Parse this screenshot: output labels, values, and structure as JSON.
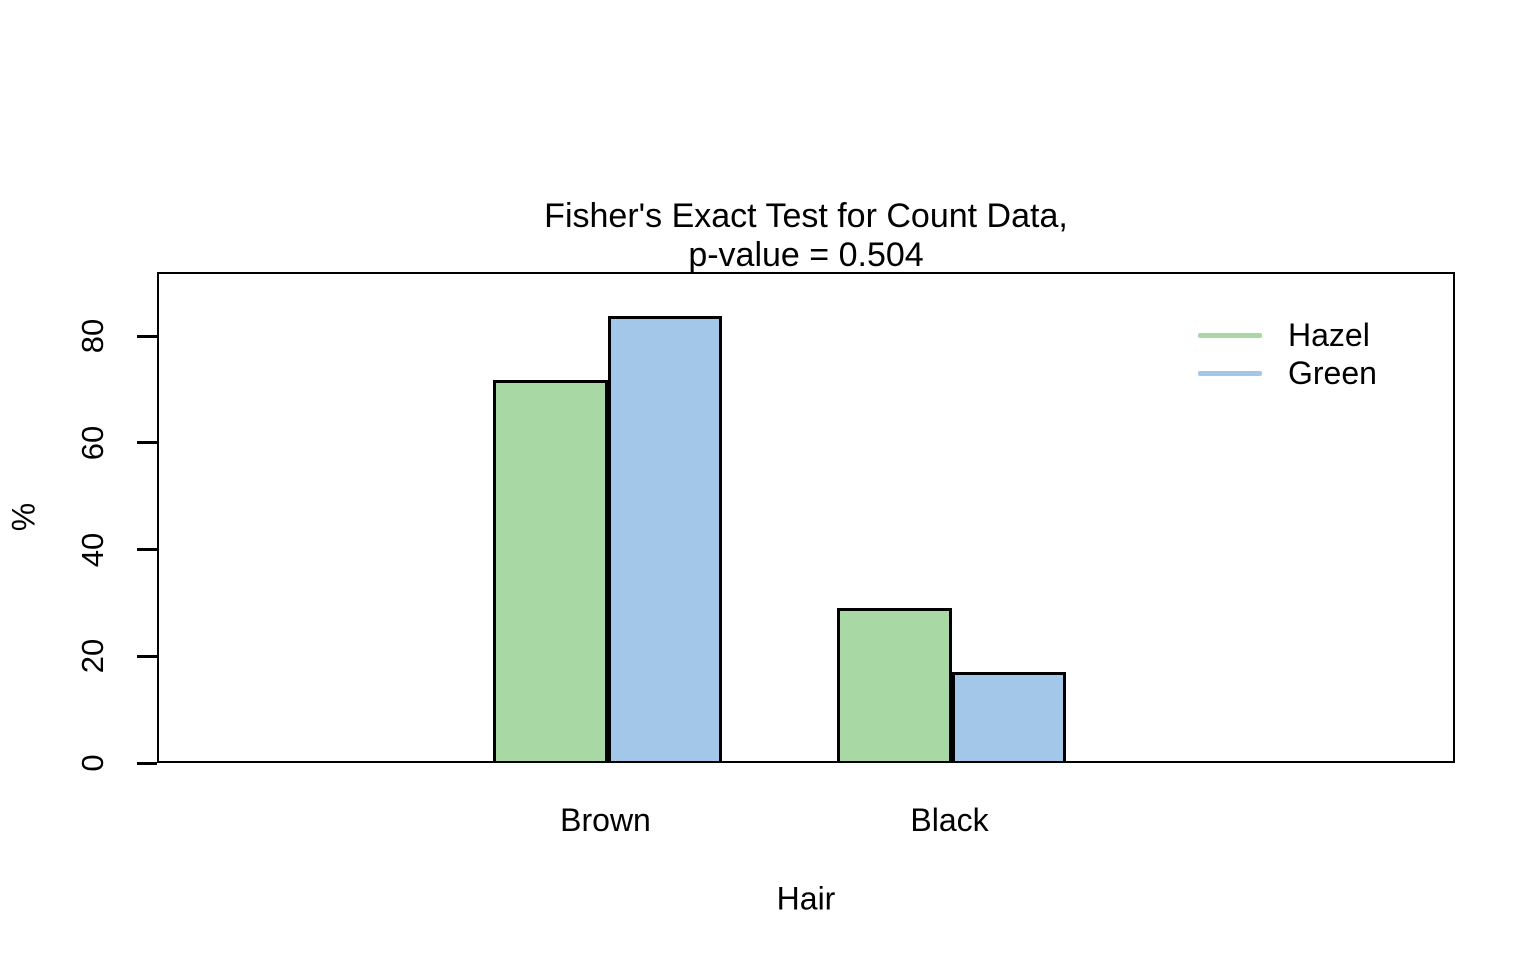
{
  "chart_data": {
    "type": "bar",
    "title": "Fisher's Exact Test for Count Data,\np-value = 0.504",
    "xlabel": "Hair",
    "ylabel": "%",
    "categories": [
      "Brown",
      "Black"
    ],
    "series": [
      {
        "name": "Hazel",
        "color": "#A8D9A5",
        "values": [
          71.4,
          28.6
        ]
      },
      {
        "name": "Green",
        "color": "#A3C7E9",
        "values": [
          83.3,
          16.7
        ]
      }
    ],
    "yticks": [
      0,
      20,
      40,
      60,
      80
    ],
    "ylim": [
      0,
      92
    ],
    "grid": false,
    "legend_position": "top-right",
    "bar_border_color": "#000000",
    "axis_color": "#000000"
  }
}
